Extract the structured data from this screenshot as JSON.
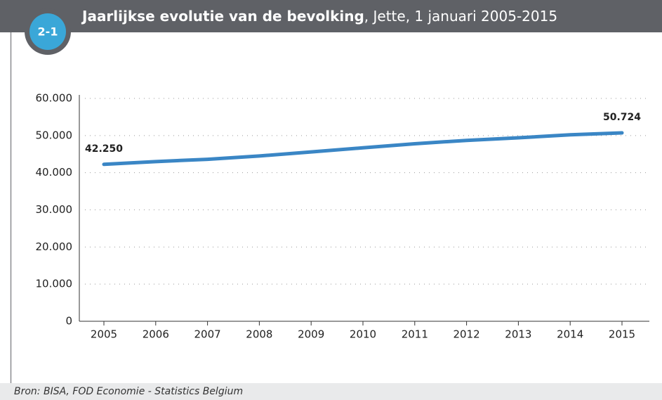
{
  "badge": "2-1",
  "chart_data": {
    "type": "line",
    "title": "Jaarlijkse evolutie van de bevolking",
    "subtitle": ", Jette, 1 januari 2005-2015",
    "categories": [
      "2005",
      "2006",
      "2007",
      "2008",
      "2009",
      "2010",
      "2011",
      "2012",
      "2013",
      "2014",
      "2015"
    ],
    "series": [
      {
        "color": "#3a86c5",
        "values": [
          42250,
          43000,
          43600,
          44500,
          45600,
          46700,
          47800,
          48700,
          49400,
          50200,
          50724
        ],
        "value_labels": [
          "42.250",
          null,
          null,
          null,
          null,
          null,
          null,
          null,
          null,
          null,
          "50.724"
        ]
      }
    ],
    "ylim": [
      0,
      60000
    ],
    "yticks": [
      0,
      {
        "value": 10000,
        "label": "10.000"
      },
      {
        "value": 20000,
        "label": "20.000"
      },
      {
        "value": 30000,
        "label": "30.000"
      },
      {
        "value": 40000,
        "label": "40.000"
      },
      {
        "value": 50000,
        "label": "50.000"
      },
      {
        "value": 60000,
        "label": "60.000"
      }
    ],
    "grid": true
  },
  "source": "Bron: BISA, FOD Economie - Statistics Belgium"
}
